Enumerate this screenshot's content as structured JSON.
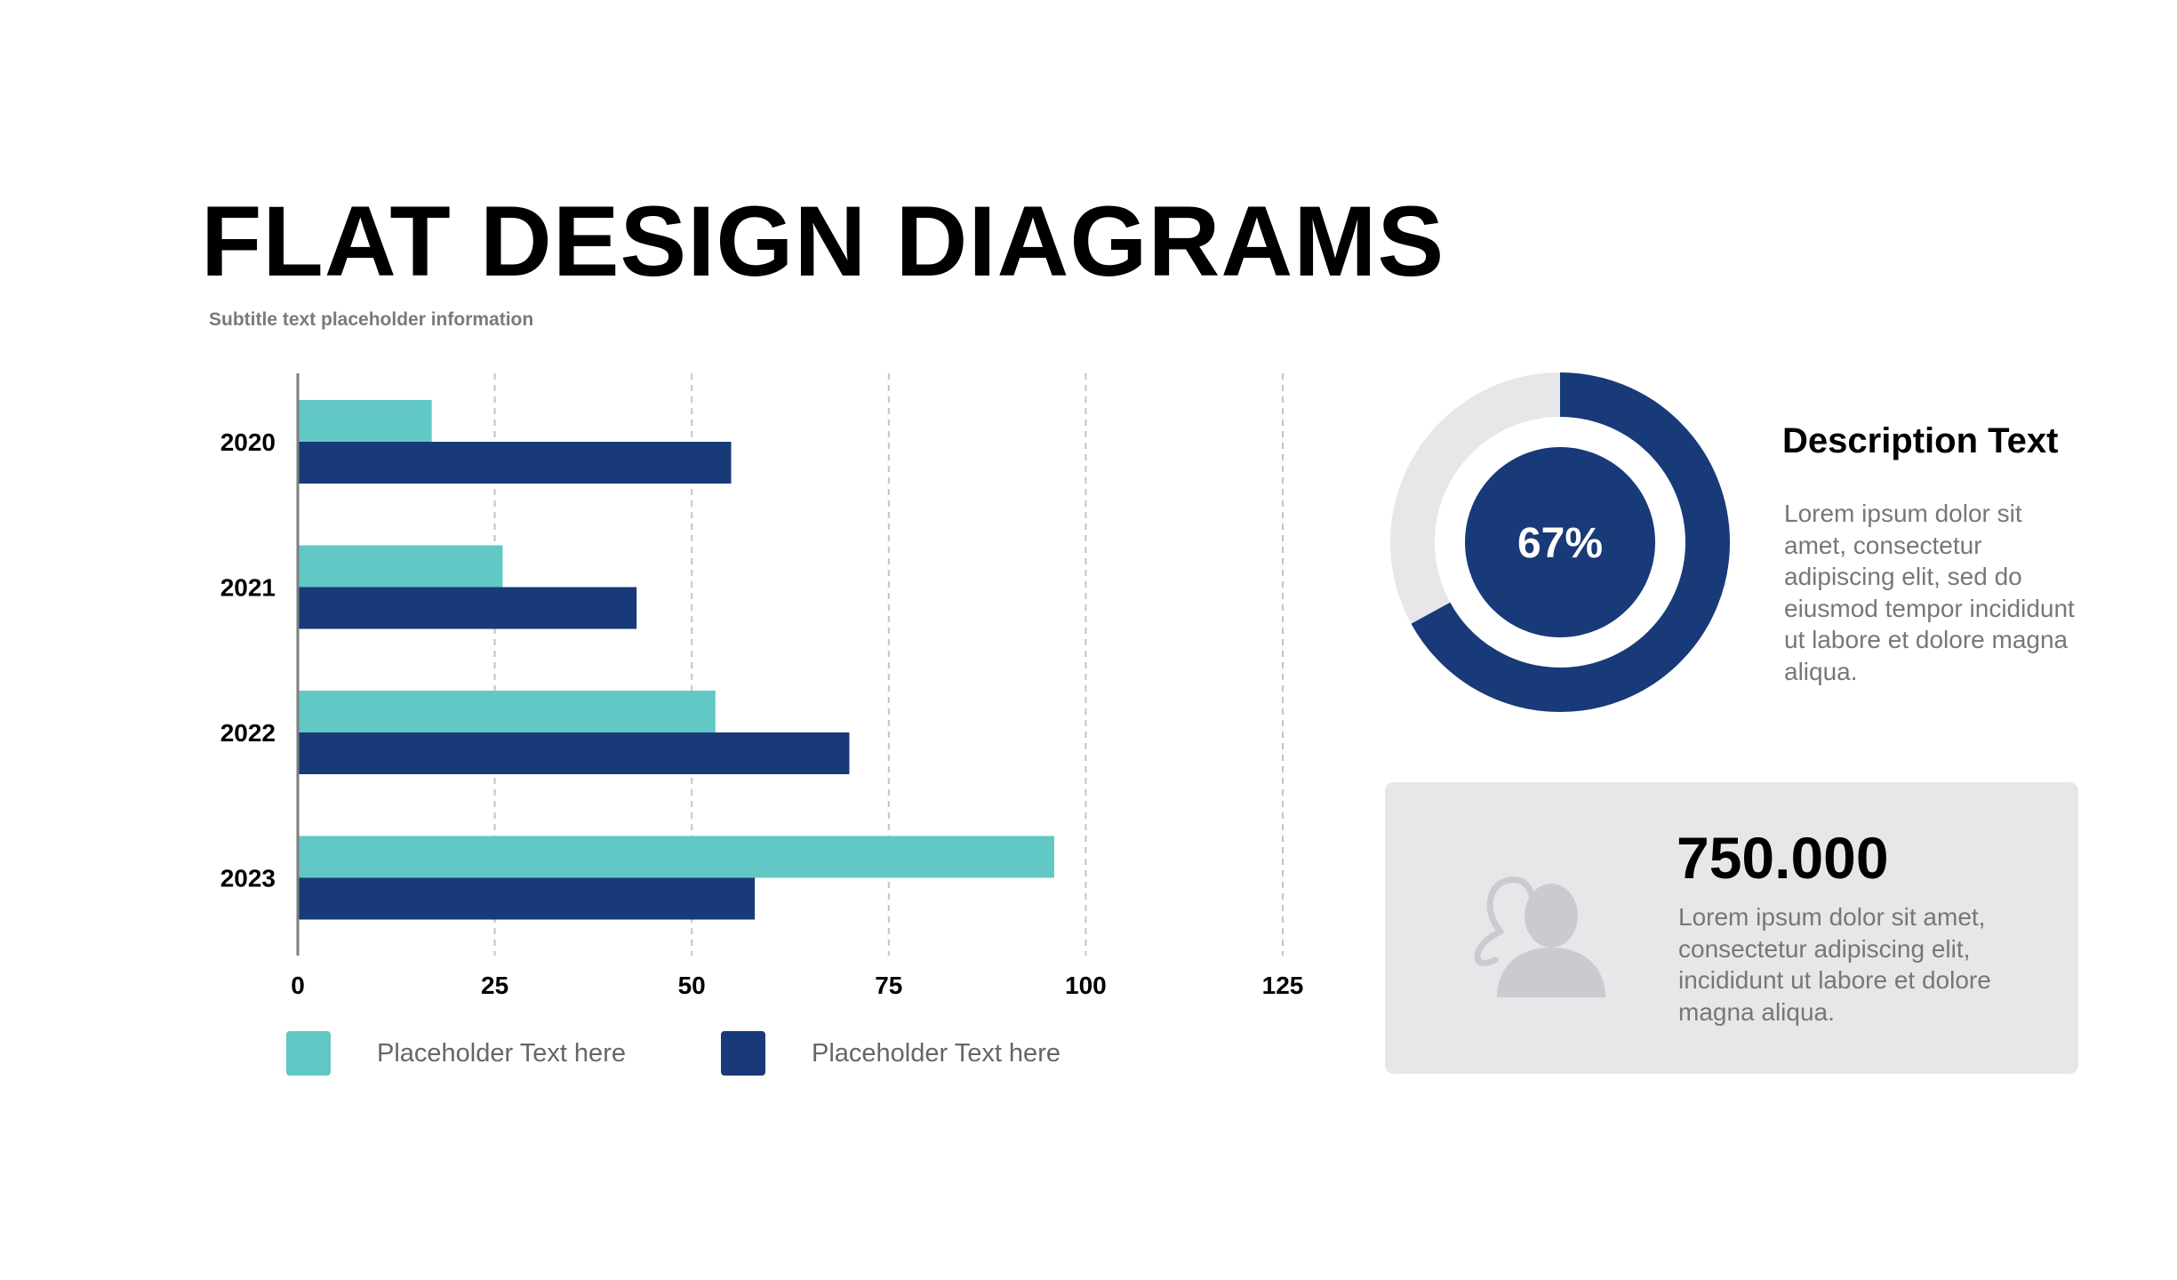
{
  "header": {
    "title": "FLAT DESIGN DIAGRAMS",
    "subtitle": "Subtitle text placeholder information"
  },
  "chart_data": [
    {
      "type": "bar",
      "orientation": "horizontal",
      "categories": [
        "2020",
        "2021",
        "2022",
        "2023"
      ],
      "series": [
        {
          "name": "Placeholder Text here",
          "color": "#61c8c5",
          "values": [
            17,
            26,
            53,
            96
          ]
        },
        {
          "name": "Placeholder Text here",
          "color": "#183a78",
          "values": [
            55,
            43,
            70,
            58
          ]
        }
      ],
      "xlim": [
        0,
        125
      ],
      "xticks": [
        "0",
        "25",
        "50",
        "75",
        "100",
        "125"
      ],
      "grid": "vertical dashed",
      "legend": "bottom"
    },
    {
      "type": "pie",
      "style": "donut",
      "value": 67,
      "label": "67%",
      "colors": {
        "filled": "#183a78",
        "track": "#e7e7e9",
        "center": "#183a78"
      }
    }
  ],
  "description": {
    "title": "Description Text",
    "body": "Lorem ipsum dolor sit amet, consectetur adipiscing elit, sed do eiusmod tempor incididunt ut labore et dolore magna aliqua."
  },
  "stat": {
    "value": "750.000",
    "body": "Lorem ipsum dolor sit amet, consectetur adipiscing elit, incididunt ut labore et dolore magna aliqua.",
    "icon": "user-icon"
  }
}
